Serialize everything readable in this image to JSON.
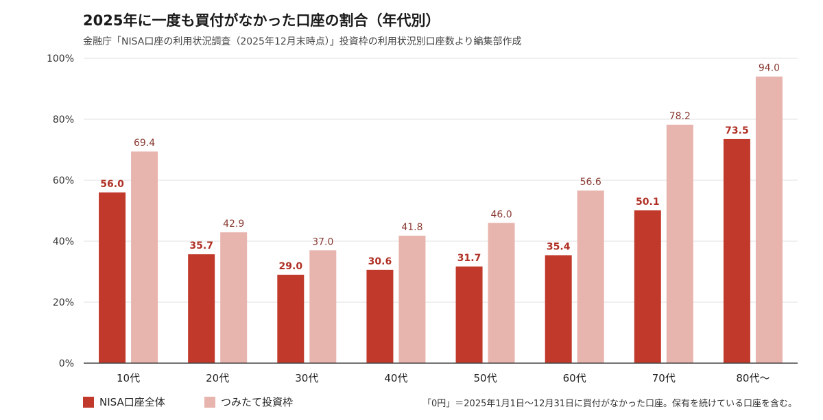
{
  "title": "2025年に一度も買付がなかった口座の割合（年代別）",
  "subtitle": "金融庁「NISA口座の利用状況調査（2025年12月末時点）」投資枠の利用状況別口座数より編集部作成",
  "note": "「0円」＝2025年1月1日～12月31日に買付がなかった口座。保有を続けている口座を含む。",
  "colors": {
    "nisa_total": "#c0392b",
    "tsumitate": "#e8b4ae",
    "grid": "#e0e0e0",
    "axis": "#444444"
  },
  "chart_data": {
    "type": "bar",
    "title": "2025年に一度も買付がなかった口座の割合（年代別）",
    "categories": [
      "10代",
      "20代",
      "30代",
      "40代",
      "50代",
      "60代",
      "70代",
      "80代～"
    ],
    "series": [
      {
        "name": "NISA口座全体",
        "values": [
          56.0,
          35.7,
          29.0,
          30.6,
          31.7,
          35.4,
          50.1,
          73.5
        ]
      },
      {
        "name": "つみたて投資枠",
        "values": [
          69.4,
          42.9,
          37.0,
          41.8,
          46.0,
          56.6,
          78.2,
          94.0
        ]
      }
    ],
    "yticks": [
      "0%",
      "20%",
      "40%",
      "60%",
      "80%",
      "100%"
    ],
    "ylim": [
      0,
      100
    ],
    "grid": true,
    "legend": "bottom-left"
  }
}
